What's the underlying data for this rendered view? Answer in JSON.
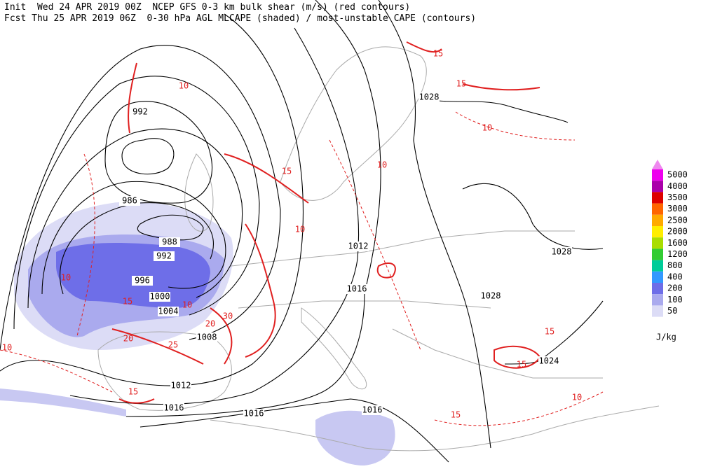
{
  "header": {
    "line1": "Init  Wed 24 APR 2019 00Z  NCEP GFS 0-3 km bulk shear (m/s) (red contours)",
    "line2": "Fcst Thu 25 APR 2019 06Z  0-30 hPa AGL MLCAPE (shaded) / most-unstable CAPE (contours)"
  },
  "colorbar": {
    "unit": "J/kg",
    "levels": [
      {
        "label": "5000",
        "color": "#ee00ee"
      },
      {
        "label": "4000",
        "color": "#aa00aa"
      },
      {
        "label": "3500",
        "color": "#dd0000"
      },
      {
        "label": "3000",
        "color": "#ff6600"
      },
      {
        "label": "2500",
        "color": "#ffaa00"
      },
      {
        "label": "2000",
        "color": "#ffee00"
      },
      {
        "label": "1600",
        "color": "#aadd00"
      },
      {
        "label": "1200",
        "color": "#33cc33"
      },
      {
        "label": "800",
        "color": "#00cc99"
      },
      {
        "label": "400",
        "color": "#3399ff"
      },
      {
        "label": "200",
        "color": "#6e6ee8"
      },
      {
        "label": "100",
        "color": "#aaaaee"
      },
      {
        "label": "50",
        "color": "#dcdcf6"
      }
    ]
  },
  "pressure_labels": [
    "992",
    "986",
    "988",
    "992",
    "996",
    "1000",
    "1004",
    "1008",
    "1012",
    "1016",
    "1016",
    "1016",
    "1016",
    "1012",
    "1028",
    "1028",
    "1028",
    "1024"
  ],
  "shear_labels": [
    "10",
    "15",
    "10",
    "20",
    "30",
    "15",
    "10",
    "25",
    "20",
    "15",
    "15",
    "15",
    "10",
    "15",
    "15",
    "10",
    "10",
    "10",
    "10",
    "15"
  ]
}
